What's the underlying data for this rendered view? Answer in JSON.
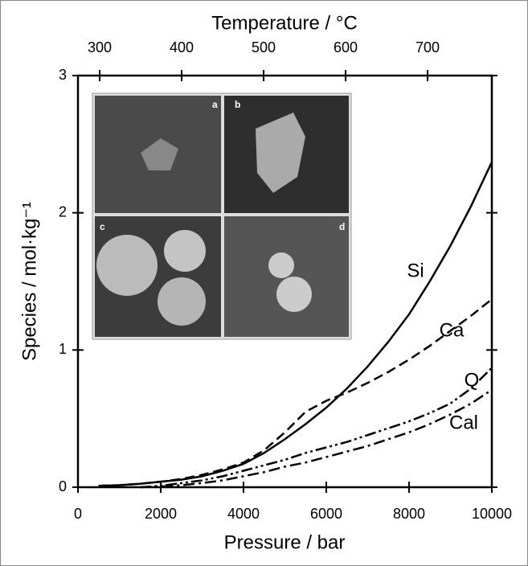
{
  "chart_data": {
    "type": "line",
    "xlabel": "Pressure / bar",
    "ylabel": "Species / mol·kg⁻¹",
    "x2label": "Temperature / °C",
    "x": [
      500,
      1000,
      1500,
      2000,
      2500,
      3000,
      3500,
      4000,
      4500,
      5000,
      5500,
      6000,
      6500,
      7000,
      7500,
      8000,
      8500,
      9000,
      9500,
      10000
    ],
    "series": [
      {
        "name": "Si",
        "color": "#000000",
        "linestyle": "solid",
        "values": [
          0.01,
          0.015,
          0.025,
          0.04,
          0.055,
          0.08,
          0.12,
          0.17,
          0.25,
          0.35,
          0.46,
          0.58,
          0.72,
          0.88,
          1.06,
          1.26,
          1.5,
          1.76,
          2.05,
          2.37
        ]
      },
      {
        "name": "Ca",
        "color": "#000000",
        "linestyle": "dashed",
        "values": [
          0.01,
          0.015,
          0.025,
          0.04,
          0.06,
          0.09,
          0.13,
          0.18,
          0.27,
          0.4,
          0.55,
          0.63,
          0.69,
          0.76,
          0.84,
          0.93,
          1.03,
          1.14,
          1.25,
          1.37
        ]
      },
      {
        "name": "Q",
        "color": "#000000",
        "linestyle": "dashdotdot",
        "values": [
          null,
          null,
          0,
          0.01,
          0.03,
          0.05,
          0.08,
          0.12,
          0.16,
          0.2,
          0.25,
          0.29,
          0.33,
          0.38,
          0.43,
          0.48,
          0.54,
          0.61,
          0.72,
          0.87
        ]
      },
      {
        "name": "Cal",
        "color": "#000000",
        "linestyle": "dashdot",
        "values": [
          null,
          null,
          0,
          0.005,
          0.015,
          0.03,
          0.05,
          0.08,
          0.11,
          0.15,
          0.18,
          0.22,
          0.26,
          0.3,
          0.35,
          0.4,
          0.46,
          0.53,
          0.61,
          0.71
        ]
      }
    ],
    "xlim": [
      0,
      10000
    ],
    "xticks": [
      0,
      2000,
      4000,
      6000,
      8000,
      10000
    ],
    "x2lim": [
      273.5,
      778.4
    ],
    "x2ticks": [
      300,
      400,
      500,
      600,
      700
    ],
    "ylim": [
      0,
      3
    ],
    "yticks": [
      0,
      1,
      2,
      3
    ],
    "grid": false,
    "inset": {
      "panels": [
        "a",
        "b",
        "c",
        "d"
      ]
    }
  }
}
